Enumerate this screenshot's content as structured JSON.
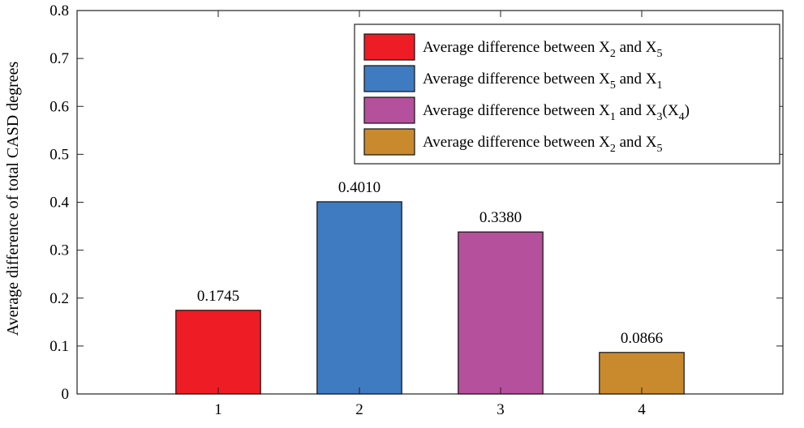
{
  "chart_data": {
    "type": "bar",
    "title": "",
    "xlabel": "",
    "ylabel": "Average difference of total CASD degrees",
    "categories": [
      "1",
      "2",
      "3",
      "4"
    ],
    "values": [
      0.1745,
      0.401,
      0.338,
      0.0866
    ],
    "value_labels": [
      "0.1745",
      "0.4010",
      "0.3380",
      "0.0866"
    ],
    "colors": [
      "#ee1c24",
      "#3f7bc0",
      "#b5509c",
      "#c98a2e"
    ],
    "xlim": [
      0,
      5
    ],
    "ylim": [
      0,
      0.8
    ],
    "yticks": [
      0,
      0.1,
      0.2,
      0.3,
      0.4,
      0.5,
      0.6,
      0.7,
      0.8
    ],
    "ytick_labels": [
      "0",
      "0.1",
      "0.2",
      "0.3",
      "0.4",
      "0.5",
      "0.6",
      "0.7",
      "0.8"
    ],
    "grid": false,
    "legend_position": "top-right",
    "legend": [
      {
        "text": "Average difference between X",
        "sub1": "2",
        "mid": " and X",
        "sub2": "5",
        "tail": ""
      },
      {
        "text": "Average difference between X",
        "sub1": "5",
        "mid": " and X",
        "sub2": "1",
        "tail": ""
      },
      {
        "text": "Average difference between X",
        "sub1": "1",
        "mid": " and X",
        "sub2": "3",
        "tail": "(X",
        "sub3": "4",
        "tail2": ")"
      },
      {
        "text": "Average difference between X",
        "sub1": "2",
        "mid": " and X",
        "sub2": "5",
        "tail": ""
      }
    ]
  }
}
